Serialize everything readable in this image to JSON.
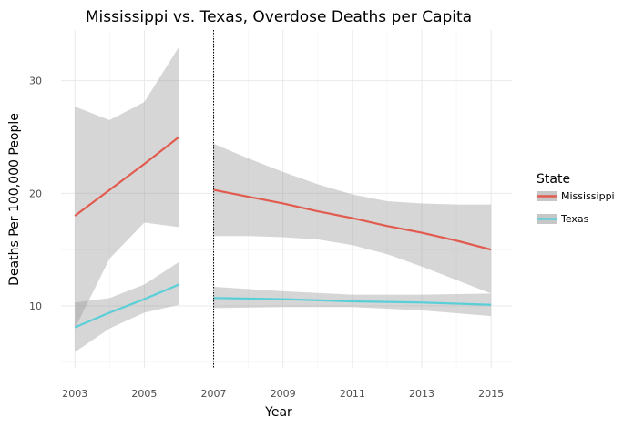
{
  "chart_data": {
    "type": "line",
    "title": "Mississippi vs. Texas, Overdose Deaths per Capita",
    "xlabel": "Year",
    "ylabel": "Deaths Per 100,000 People",
    "xlim": [
      2002.6,
      2015.6
    ],
    "ylim": [
      4.5,
      34.5
    ],
    "x_ticks": [
      2003,
      2005,
      2007,
      2009,
      2011,
      2013,
      2015
    ],
    "y_ticks": [
      10,
      20,
      30
    ],
    "grid": true,
    "vline": 2007,
    "legend": {
      "title": "State",
      "placement": "right",
      "entries": [
        "Mississippi",
        "Texas"
      ]
    },
    "series": [
      {
        "name": "Mississippi",
        "color": "#e15b4f",
        "segments": [
          {
            "x": [
              2003,
              2004,
              2005,
              2006
            ],
            "y": [
              18.0,
              20.3,
              22.6,
              25.0
            ],
            "ribbon_lower": [
              8.0,
              14.2,
              17.4,
              17.0
            ],
            "ribbon_upper": [
              27.7,
              26.5,
              28.1,
              33.0
            ]
          },
          {
            "x": [
              2007,
              2008,
              2009,
              2010,
              2011,
              2012,
              2013,
              2014,
              2015
            ],
            "y": [
              20.3,
              19.7,
              19.1,
              18.4,
              17.8,
              17.1,
              16.5,
              15.8,
              15.0
            ],
            "ribbon_lower": [
              16.2,
              16.2,
              16.1,
              15.9,
              15.4,
              14.6,
              13.5,
              12.3,
              11.1
            ],
            "ribbon_upper": [
              24.4,
              23.1,
              21.9,
              20.8,
              19.9,
              19.3,
              19.1,
              19.0,
              19.0
            ]
          }
        ]
      },
      {
        "name": "Texas",
        "color": "#5bcfd8",
        "segments": [
          {
            "x": [
              2003,
              2004,
              2005,
              2006
            ],
            "y": [
              8.1,
              9.4,
              10.6,
              11.9
            ],
            "ribbon_lower": [
              5.9,
              8.0,
              9.4,
              10.1
            ],
            "ribbon_upper": [
              10.3,
              10.7,
              11.9,
              13.9
            ]
          },
          {
            "x": [
              2007,
              2009,
              2011,
              2013,
              2015
            ],
            "y": [
              10.7,
              10.6,
              10.4,
              10.3,
              10.1
            ],
            "ribbon_lower": [
              9.8,
              9.9,
              9.9,
              9.6,
              9.1
            ],
            "ribbon_upper": [
              11.7,
              11.3,
              11.0,
              11.0,
              11.1
            ]
          }
        ]
      }
    ]
  }
}
